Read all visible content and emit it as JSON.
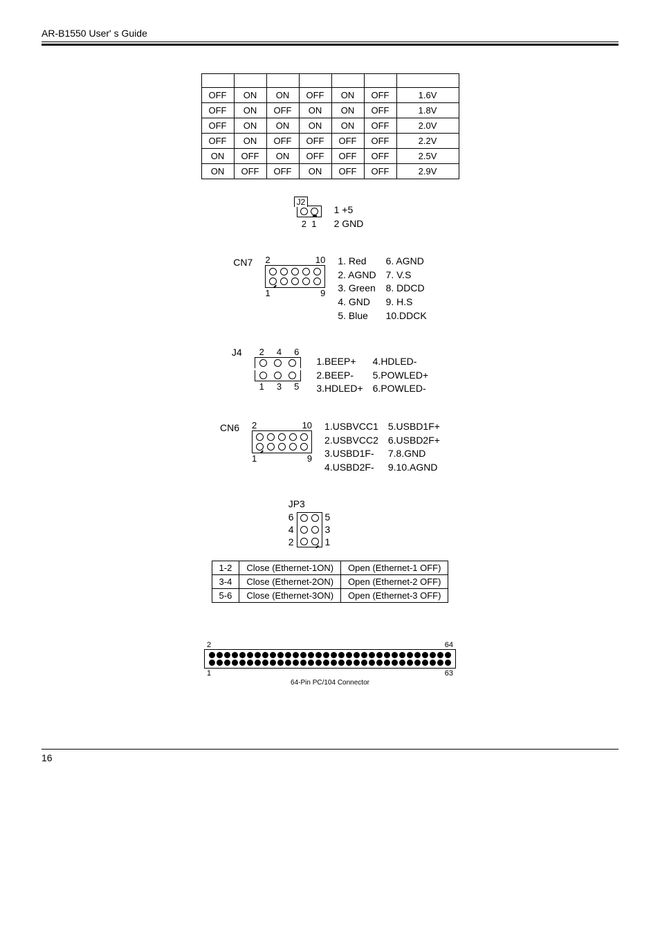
{
  "header": {
    "title": "AR-B1550 User' s Guide"
  },
  "voltage_table": {
    "rows": [
      [
        "OFF",
        "ON",
        "ON",
        "OFF",
        "ON",
        "OFF",
        "1.6V"
      ],
      [
        "OFF",
        "ON",
        "OFF",
        "ON",
        "ON",
        "OFF",
        "1.8V"
      ],
      [
        "OFF",
        "ON",
        "ON",
        "ON",
        "ON",
        "OFF",
        "2.0V"
      ],
      [
        "OFF",
        "ON",
        "OFF",
        "OFF",
        "OFF",
        "OFF",
        "2.2V"
      ],
      [
        "ON",
        "OFF",
        "ON",
        "OFF",
        "OFF",
        "OFF",
        "2.5V"
      ],
      [
        "ON",
        "OFF",
        "OFF",
        "ON",
        "OFF",
        "OFF",
        "2.9V"
      ]
    ]
  },
  "j2": {
    "title": "J2",
    "pin_nums": [
      "2",
      "1"
    ],
    "pins": {
      "1": "1 +5",
      "2": "2 GND"
    }
  },
  "cn7": {
    "label": "CN7",
    "top": [
      "2",
      "10"
    ],
    "bottom": [
      "1",
      "9"
    ],
    "left": [
      "1. Red",
      "2. AGND",
      "3. Green",
      "4. GND",
      "5. Blue"
    ],
    "right": [
      "6. AGND",
      "7.  V.S",
      "8. DDCD",
      "9. H.S",
      "10.DDCK"
    ]
  },
  "j4": {
    "label": "J4",
    "top_nums": [
      "2",
      "4",
      "6"
    ],
    "bot_nums": [
      "1",
      "3",
      "5"
    ],
    "left": [
      "1.BEEP+",
      "2.BEEP-",
      "3.HDLED+"
    ],
    "right": [
      "4.HDLED-",
      "5.POWLED+",
      "6.POWLED-"
    ]
  },
  "cn6": {
    "label": "CN6",
    "top": [
      "2",
      "10"
    ],
    "bottom": [
      "1",
      "9"
    ],
    "left": [
      "1.USBVCC1",
      "2.USBVCC2",
      "3.USBD1F-",
      "4.USBD2F-"
    ],
    "right": [
      "5.USBD1F+",
      "6.USBD2F+",
      "7.8.GND",
      "9.10.AGND"
    ]
  },
  "jp3": {
    "title": "JP3",
    "left_nums": [
      "6",
      "4",
      "2"
    ],
    "right_nums": [
      "5",
      "3",
      "1"
    ],
    "table": [
      [
        "1-2",
        "Close (Ethernet-1ON)",
        "Open (Ethernet-1 OFF)"
      ],
      [
        "3-4",
        "Close (Ethernet-2ON)",
        "Open (Ethernet-2 OFF)"
      ],
      [
        "5-6",
        "Close (Ethernet-3ON)",
        "Open (Ethernet-3 OFF)"
      ]
    ]
  },
  "pc104": {
    "top": [
      "2",
      "64"
    ],
    "bottom": [
      "1",
      "63"
    ],
    "caption": "64-Pin PC/104 Connector"
  },
  "page_number": "16",
  "colors": {
    "text": "#000000",
    "bg": "#ffffff"
  }
}
